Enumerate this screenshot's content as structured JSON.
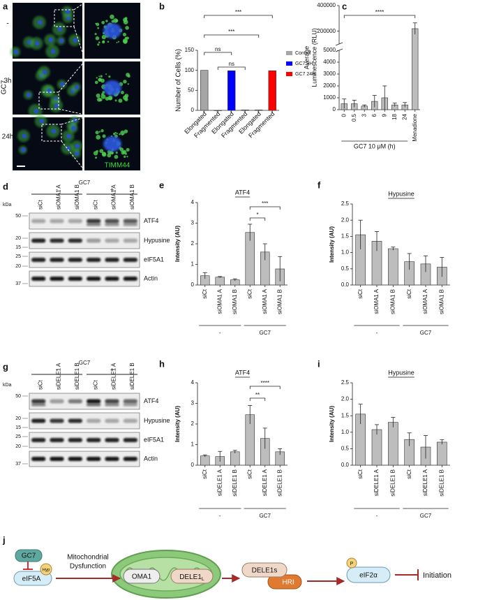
{
  "panels": {
    "a": {
      "letter": "a",
      "side_label": "GC7",
      "rows": [
        "-",
        "3h",
        "24h"
      ],
      "stain": "TIMM44"
    },
    "d": {
      "letter": "d",
      "treatment": "GC7",
      "conditions": [
        "-",
        "+"
      ],
      "kda": "kDa",
      "lanes": [
        "siCt",
        "siOMA1 A",
        "siOMA1 B",
        "siCt",
        "siOMA1 A",
        "siOMA1 B"
      ],
      "markers": [
        "50",
        "20",
        "15",
        "25",
        "20",
        "37"
      ],
      "bands": [
        "ATF4",
        "Hypusine",
        "eIF5A1",
        "Actin"
      ]
    },
    "g": {
      "letter": "g",
      "treatment": "GC7",
      "conditions": [
        "-",
        "+"
      ],
      "kda": "kDa",
      "lanes": [
        "siCt",
        "siDELE1 A",
        "siDELE1 B",
        "siCt",
        "siDELE1 A",
        "siDELE1 B"
      ],
      "markers": [
        "50",
        "20",
        "15",
        "25",
        "20",
        "37"
      ],
      "bands": [
        "ATF4",
        "Hypusine",
        "eIF5A1",
        "Actin"
      ]
    },
    "j": {
      "letter": "j",
      "inhibitor": "GC7",
      "modification": "Hyp",
      "factor": "eIF5A",
      "process": [
        "Mitochondrial",
        "Dysfunction"
      ],
      "protease": "OMA1",
      "dele1l": {
        "text": "DELE1",
        "sub": "L"
      },
      "dele1s": "DELE1s",
      "kinase": "HRI",
      "phospho": "P",
      "target": "eIF2α",
      "outcome": "Initiation"
    }
  },
  "chart_data": [
    {
      "type": "bar",
      "panel": "b",
      "ylabel": "Number of Cells (%)",
      "categories": [
        "Elongated",
        "Fragmented",
        "Elongated",
        "Fragmented",
        "Elongated",
        "Fragmented"
      ],
      "series": [
        {
          "name": "Control",
          "color": "#a6a6a6",
          "values": [
            100,
            0,
            null,
            null,
            null,
            null
          ]
        },
        {
          "name": "GC7 3H",
          "color": "#0000ff",
          "values": [
            null,
            null,
            99,
            1,
            null,
            null
          ]
        },
        {
          "name": "GC7 24H",
          "color": "#ff0000",
          "values": [
            null,
            null,
            null,
            null,
            1,
            99
          ]
        }
      ],
      "ylim": [
        0,
        150
      ],
      "yticks": [
        0,
        50,
        100,
        150
      ],
      "annotations": [
        "***",
        "***",
        "ns",
        "ns"
      ],
      "legend": "right"
    },
    {
      "type": "bar",
      "panel": "c",
      "ylabel_lines": [
        "Average",
        "Luminescence (RLU)"
      ],
      "xlabel": "GC7 10 μM (h)",
      "categories": [
        "0",
        "0.5",
        "3",
        "6",
        "9",
        "18",
        "24",
        "Menadione"
      ],
      "values": [
        500,
        500,
        300,
        700,
        1000,
        400,
        400,
        220000
      ],
      "errors": [
        400,
        300,
        100,
        500,
        1000,
        150,
        200,
        45000
      ],
      "color": "#bdbdbd",
      "ylim": [
        0,
        400000
      ],
      "ybreak": [
        5000,
        100000
      ],
      "yticks": [
        0,
        1000,
        2000,
        3000,
        4000,
        5000,
        200000,
        400000
      ],
      "annotations": [
        "****"
      ]
    },
    {
      "type": "bar",
      "panel": "e",
      "title": "ATF4",
      "ylabel": "Intensity (AU)",
      "categories": [
        "siCt",
        "siOMA1 A",
        "siOMA1 B",
        "siCt",
        "siOMA1 A",
        "siOMA1 B"
      ],
      "values": [
        0.45,
        0.38,
        0.25,
        2.55,
        1.6,
        0.78
      ],
      "errors": [
        0.15,
        0.03,
        0.05,
        0.4,
        0.4,
        0.6
      ],
      "color": "#bdbdbd",
      "ylim": [
        0,
        4
      ],
      "yticks": [
        0,
        1,
        2,
        3,
        4
      ],
      "groups": [
        "-",
        "GC7"
      ],
      "annotations": [
        "***",
        "*"
      ]
    },
    {
      "type": "bar",
      "panel": "f",
      "title": "Hypusine",
      "ylabel": "Intensity (AU)",
      "categories": [
        "siCt",
        "siOMA1 A",
        "siOMA1 B",
        "siCt",
        "siOMA1 A",
        "siOMA1 B"
      ],
      "values": [
        1.55,
        1.35,
        1.12,
        0.72,
        0.65,
        0.55
      ],
      "errors": [
        0.45,
        0.3,
        0.05,
        0.25,
        0.25,
        0.3
      ],
      "color": "#bdbdbd",
      "ylim": [
        0,
        2.5
      ],
      "yticks": [
        {
          "value": 0,
          "label": "0.0"
        },
        0.5,
        {
          "value": 1,
          "label": "1.0"
        },
        1.5,
        {
          "value": 2,
          "label": "2.0"
        },
        2.5
      ],
      "groups": [
        "-",
        "GC7"
      ]
    },
    {
      "type": "bar",
      "panel": "h",
      "title": "ATF4",
      "ylabel": "Intensity (AU)",
      "categories": [
        "siCt",
        "siDELE1 A",
        "siDELE1 B",
        "siCt",
        "siDELE1 A",
        "siDELE1 B"
      ],
      "values": [
        0.45,
        0.42,
        0.65,
        2.45,
        1.3,
        0.65
      ],
      "errors": [
        0.05,
        0.25,
        0.07,
        0.45,
        0.5,
        0.15
      ],
      "color": "#bdbdbd",
      "ylim": [
        0,
        4
      ],
      "yticks": [
        0,
        1,
        2,
        3,
        4
      ],
      "groups": [
        "-",
        "GC7"
      ],
      "annotations": [
        "****",
        "**"
      ]
    },
    {
      "type": "bar",
      "panel": "i",
      "title": "Hypusine",
      "ylabel": "Intensity (AU)",
      "categories": [
        "siCt",
        "siDELE1 A",
        "siDELE1 B",
        "siCt",
        "siDELE1 A",
        "siDELE1 B"
      ],
      "values": [
        1.55,
        1.08,
        1.3,
        0.78,
        0.55,
        0.7
      ],
      "errors": [
        0.3,
        0.15,
        0.15,
        0.2,
        0.35,
        0.07
      ],
      "color": "#bdbdbd",
      "ylim": [
        0,
        2.5
      ],
      "yticks": [
        {
          "value": 0,
          "label": "0.0"
        },
        0.5,
        {
          "value": 1,
          "label": "1.0"
        },
        1.5,
        {
          "value": 2,
          "label": "2.0"
        },
        2.5
      ],
      "groups": [
        "-",
        "GC7"
      ]
    }
  ]
}
